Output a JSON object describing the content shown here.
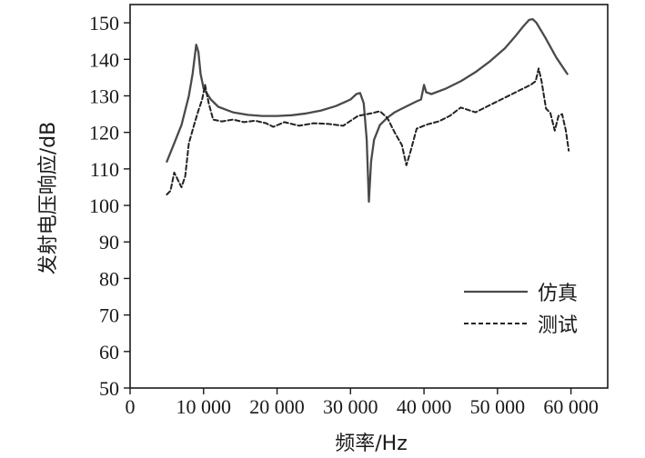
{
  "chart_data": {
    "type": "line",
    "title": "",
    "xlabel": "频率/Hz",
    "ylabel": "发射电压响应/dB",
    "xlim": [
      0,
      65000
    ],
    "ylim": [
      50,
      155
    ],
    "xticks": [
      0,
      10000,
      20000,
      30000,
      40000,
      50000,
      60000
    ],
    "xtick_labels": [
      "0",
      "10 000",
      "20 000",
      "30 000",
      "40 000",
      "50 000",
      "60 000"
    ],
    "yticks": [
      50,
      60,
      70,
      80,
      90,
      100,
      110,
      120,
      130,
      140,
      150
    ],
    "ytick_labels": [
      "50",
      "60",
      "70",
      "80",
      "90",
      "100",
      "110",
      "120",
      "130",
      "140",
      "150"
    ],
    "grid": false,
    "legend_position": "bottom-right",
    "series": [
      {
        "name": "仿真",
        "style": "solid",
        "color": "#4a4a4a",
        "x": [
          5000,
          6000,
          7000,
          8000,
          8500,
          9000,
          9300,
          9600,
          10000,
          11000,
          12000,
          14000,
          16000,
          18000,
          20000,
          22000,
          24000,
          26000,
          28000,
          30000,
          30800,
          31300,
          31800,
          32200,
          32500,
          32800,
          33200,
          34000,
          35000,
          36000,
          37000,
          38000,
          39000,
          39600,
          40000,
          40300,
          41000,
          43000,
          45000,
          47000,
          49000,
          51000,
          52500,
          53500,
          54300,
          54800,
          55300,
          56500,
          58000,
          59500
        ],
        "y": [
          112,
          117,
          122,
          130,
          136,
          144,
          142,
          136,
          132,
          129,
          127,
          125.5,
          124.8,
          124.5,
          124.5,
          124.7,
          125.2,
          126,
          127.2,
          129,
          130.5,
          130.8,
          128,
          118,
          101,
          112,
          118,
          122,
          124,
          125.5,
          126.5,
          127.5,
          128.5,
          129,
          133,
          131,
          130.5,
          132,
          134,
          136.5,
          139.5,
          143,
          146.5,
          149,
          150.8,
          151,
          150,
          146,
          140.5,
          136
        ]
      },
      {
        "name": "测试",
        "style": "dashed",
        "color": "#222222",
        "x": [
          5000,
          5500,
          6000,
          6500,
          7000,
          7500,
          8000,
          8700,
          9300,
          9800,
          10200,
          10700,
          11300,
          12500,
          14000,
          15500,
          17000,
          18500,
          19500,
          21000,
          23000,
          25000,
          27000,
          29000,
          31000,
          33000,
          34000,
          35000,
          36000,
          37000,
          37600,
          38200,
          39000,
          40500,
          42000,
          43500,
          45000,
          47000,
          49000,
          51000,
          53000,
          54500,
          55200,
          55600,
          56000,
          56600,
          57200,
          57800,
          58300,
          58800,
          59300,
          59700
        ],
        "y": [
          103,
          104,
          109,
          107,
          105,
          108,
          117,
          122,
          126,
          129,
          133,
          128,
          123.5,
          123,
          123.5,
          122.8,
          123.2,
          122.5,
          121.5,
          122.8,
          121.8,
          122.5,
          122.3,
          121.8,
          124.5,
          125.3,
          125.8,
          124,
          120,
          116.5,
          111,
          115,
          121,
          122.2,
          123,
          124.5,
          126.8,
          125.5,
          127.5,
          129.5,
          131.5,
          133,
          134,
          137.5,
          134,
          126.5,
          125.3,
          120.5,
          124.5,
          125,
          120.5,
          115
        ]
      }
    ]
  }
}
